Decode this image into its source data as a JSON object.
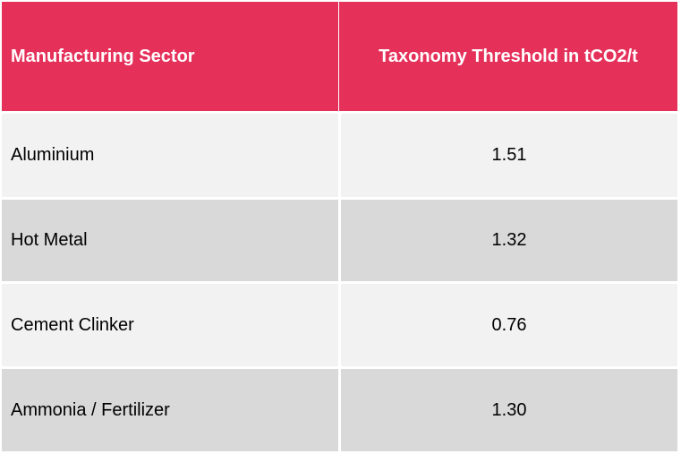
{
  "colors": {
    "header_bg": "#e5305a",
    "row_light": "#f2f2f2",
    "row_dark": "#d9d9d9"
  },
  "table": {
    "headers": [
      "Manufacturing Sector",
      "Taxonomy Threshold in tCO2/t"
    ],
    "rows": [
      {
        "sector": "Aluminium",
        "threshold": "1.51"
      },
      {
        "sector": "Hot Metal",
        "threshold": "1.32"
      },
      {
        "sector": "Cement Clinker",
        "threshold": "0.76"
      },
      {
        "sector": "Ammonia / Fertilizer",
        "threshold": "1.30"
      }
    ]
  }
}
